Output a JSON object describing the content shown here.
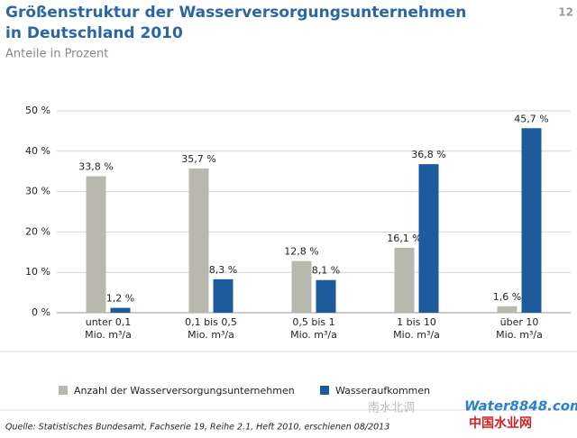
{
  "page_number": "12",
  "chart_data": {
    "type": "bar",
    "title": [
      "Größenstruktur der Wasserversorgungsunternehmen",
      "in Deutschland 2010"
    ],
    "subtitle": "Anteile in Prozent",
    "categories": [
      "unter 0,1\nMio. m³/a",
      "0,1 bis 0,5\nMio. m³/a",
      "0,5 bis 1\nMio. m³/a",
      "1 bis 10\nMio. m³/a",
      "über 10\nMio. m³/a"
    ],
    "series": [
      {
        "name": "Anzahl der Wasserversorgungsunternehmen",
        "color": "#b8b8ae",
        "values": [
          33.8,
          35.7,
          12.8,
          16.1,
          1.6
        ],
        "value_labels": [
          "33,8 %",
          "35,7 %",
          "12,8 %",
          "16,1 %",
          "1,6 %"
        ]
      },
      {
        "name": "Wasseraufkommen",
        "color": "#1d5c9c",
        "values": [
          1.2,
          8.3,
          8.1,
          36.8,
          45.7
        ],
        "value_labels": [
          "1,2 %",
          "8,3 %",
          "8,1 %",
          "36,8 %",
          "45,7 %"
        ]
      }
    ],
    "ylim": [
      0,
      50
    ],
    "yticks": [
      {
        "value": 0,
        "label": "0 %"
      },
      {
        "value": 10,
        "label": "10 %"
      },
      {
        "value": 20,
        "label": "20 %"
      },
      {
        "value": 30,
        "label": "30 %"
      },
      {
        "value": 40,
        "label": "40 %"
      },
      {
        "value": 50,
        "label": "50 %"
      }
    ],
    "grid": true,
    "legend": "bottom",
    "source": "Quelle: Statistisches Bundesamt, Fachserie 19, Reihe 2.1, Heft 2010, erschienen 08/2013"
  },
  "watermark": [
    "南水北调",
    "Water8848.com",
    "中国水业网"
  ]
}
